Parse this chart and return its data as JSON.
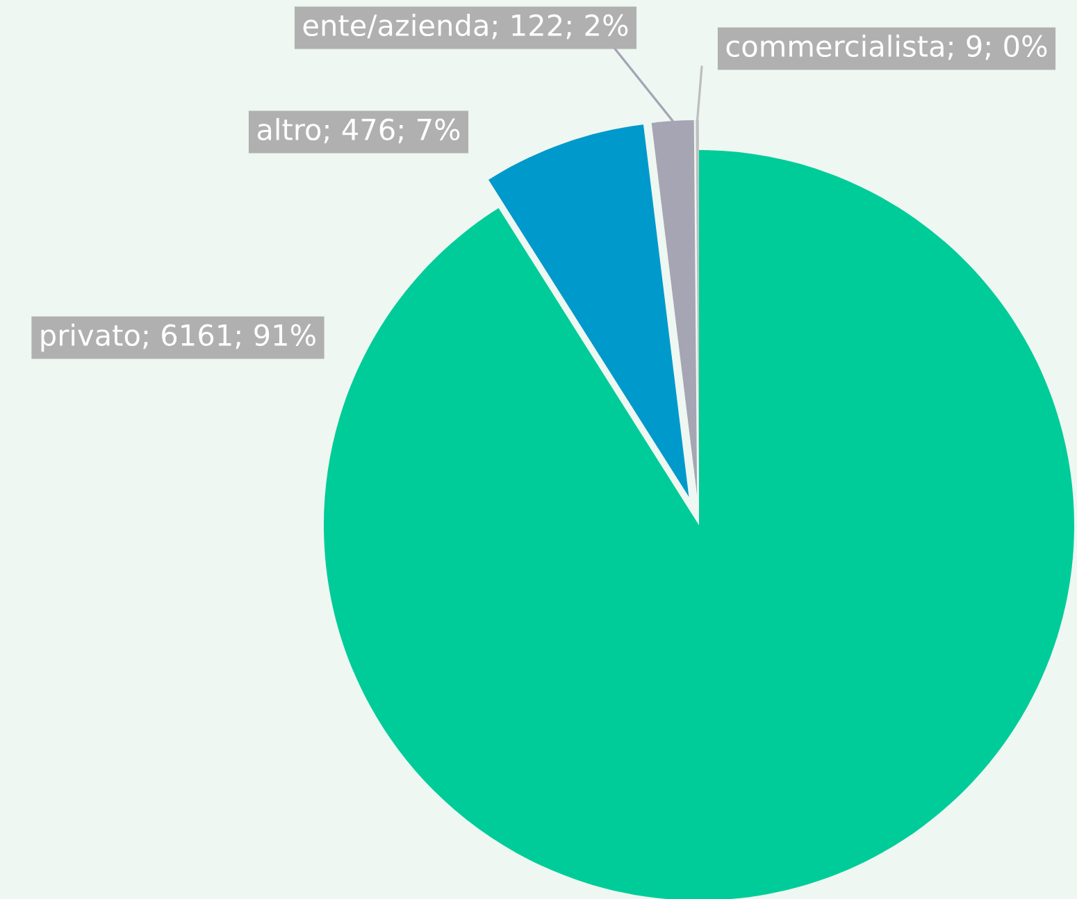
{
  "chart_data": {
    "type": "pie",
    "categories": [
      "privato",
      "altro",
      "ente/azienda",
      "commercialista"
    ],
    "values": [
      6161,
      476,
      122,
      9
    ],
    "colors": [
      "#00cc99",
      "#0099cc",
      "#a5a5b4",
      "#bfbfbf"
    ],
    "value_labels": [
      "6161; 91%",
      "476; 7%",
      "122; 2%",
      "9; 0%"
    ]
  }
}
